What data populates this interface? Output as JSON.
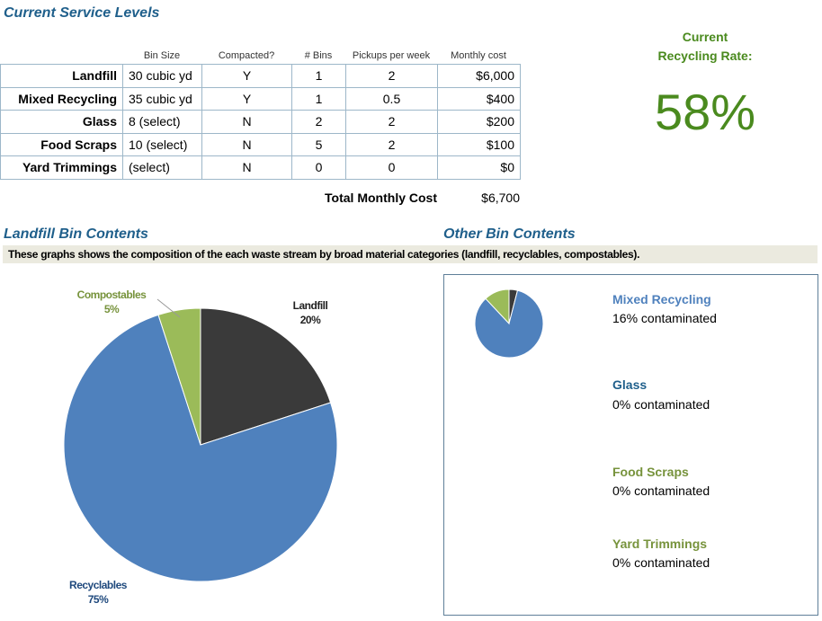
{
  "headings": {
    "current_service": "Current Service Levels",
    "landfill_contents": "Landfill Bin Contents",
    "other_contents": "Other Bin Contents"
  },
  "table": {
    "columns": [
      "Bin Size",
      "Compacted?",
      "# Bins",
      "Pickups per week",
      "Monthly cost"
    ],
    "rows": [
      {
        "name": "Landfill",
        "size": "30 cubic yd",
        "compacted": "Y",
        "bins": "1",
        "pickups": "2",
        "cost": "$6,000"
      },
      {
        "name": "Mixed Recycling",
        "size": "35 cubic yd",
        "compacted": "Y",
        "bins": "1",
        "pickups": "0.5",
        "cost": "$400"
      },
      {
        "name": "Glass",
        "size": "8 (select)",
        "compacted": "N",
        "bins": "2",
        "pickups": "2",
        "cost": "$200"
      },
      {
        "name": "Food Scraps",
        "size": "10 (select)",
        "compacted": "N",
        "bins": "5",
        "pickups": "2",
        "cost": "$100"
      },
      {
        "name": "Yard Trimmings",
        "size": "(select)",
        "compacted": "N",
        "bins": "0",
        "pickups": "0",
        "cost": "$0"
      }
    ],
    "total_label": "Total Monthly Cost",
    "total_value": "$6,700"
  },
  "recycling_rate": {
    "label_line1": "Current",
    "label_line2": "Recycling Rate:",
    "value": "58%"
  },
  "banner_text": "These graphs shows the composition of the each waste stream by broad material categories (landfill, recyclables, compostables).",
  "colors": {
    "landfill": "#3a3a3a",
    "recyclables": "#4f81bd",
    "compostables": "#9bbb59",
    "heading_blue": "#1f5f8b",
    "rate_green": "#4a8a1e"
  },
  "chart_data": [
    {
      "type": "pie",
      "title": "Landfill Bin Contents",
      "categories": [
        "Landfill",
        "Recyclables",
        "Compostables"
      ],
      "values": [
        20,
        75,
        5
      ],
      "labels": [
        "Landfill 20%",
        "Recyclables 75%",
        "Compostables 5%"
      ]
    },
    {
      "type": "pie",
      "title": "Mixed Recycling",
      "categories": [
        "Landfill",
        "Recyclables",
        "Compostables"
      ],
      "values": [
        4,
        84,
        12
      ]
    }
  ],
  "pie_labels": {
    "compostables_name": "Compostables",
    "compostables_pct": "5%",
    "landfill_name": "Landfill",
    "landfill_pct": "20%",
    "recyclables_name": "Recyclables",
    "recyclables_pct": "75%"
  },
  "other_bins": [
    {
      "name": "Mixed Recycling",
      "status": "16% contaminated",
      "color": "#4f81bd"
    },
    {
      "name": "Glass",
      "status": "0% contaminated",
      "color": "#1f5f8b"
    },
    {
      "name": "Food Scraps",
      "status": "0% contaminated",
      "color": "#77933c"
    },
    {
      "name": "Yard Trimmings",
      "status": "0% contaminated",
      "color": "#77933c"
    }
  ]
}
